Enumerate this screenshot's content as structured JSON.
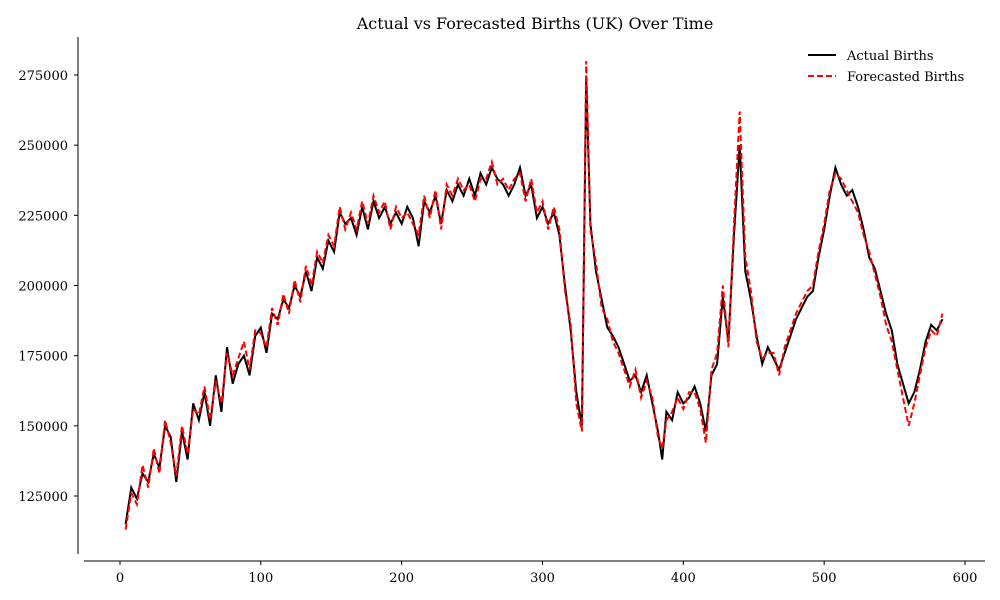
{
  "chart_data": {
    "type": "line",
    "title": "Actual vs Forecasted Births (UK) Over Time",
    "xlabel": "",
    "ylabel": "",
    "xlim": [
      -25,
      615
    ],
    "ylim": [
      105000,
      288000
    ],
    "xticks": [
      0,
      100,
      200,
      300,
      400,
      500,
      600
    ],
    "yticks": [
      125000,
      150000,
      175000,
      200000,
      225000,
      250000,
      275000
    ],
    "grid": false,
    "legend_position": "upper right",
    "series": [
      {
        "name": "Actual Births",
        "color": "#000000",
        "style": "solid",
        "x": [
          4,
          8,
          12,
          16,
          20,
          24,
          28,
          32,
          36,
          40,
          44,
          48,
          52,
          56,
          60,
          64,
          68,
          72,
          76,
          80,
          84,
          88,
          92,
          96,
          100,
          104,
          108,
          112,
          116,
          120,
          124,
          128,
          132,
          136,
          140,
          144,
          148,
          152,
          156,
          160,
          164,
          168,
          172,
          176,
          180,
          184,
          188,
          192,
          196,
          200,
          204,
          208,
          212,
          216,
          220,
          224,
          228,
          232,
          236,
          240,
          244,
          248,
          252,
          256,
          260,
          264,
          268,
          272,
          276,
          280,
          284,
          288,
          292,
          296,
          300,
          304,
          308,
          312,
          316,
          320,
          324,
          328,
          331,
          334,
          338,
          342,
          346,
          350,
          354,
          358,
          362,
          366,
          370,
          374,
          378,
          382,
          385,
          388,
          392,
          396,
          400,
          404,
          408,
          412,
          416,
          420,
          424,
          428,
          432,
          436,
          440,
          444,
          448,
          452,
          456,
          460,
          464,
          468,
          472,
          476,
          480,
          484,
          488,
          492,
          496,
          500,
          504,
          508,
          512,
          516,
          520,
          524,
          528,
          532,
          536,
          540,
          544,
          548,
          552,
          556,
          560,
          564,
          568,
          572,
          576,
          580,
          584
        ],
        "values": [
          115000,
          128000,
          124000,
          133000,
          130000,
          140000,
          135000,
          150000,
          146000,
          130000,
          148000,
          138000,
          158000,
          152000,
          162000,
          150000,
          168000,
          155000,
          178000,
          165000,
          172000,
          175000,
          168000,
          182000,
          185000,
          176000,
          190000,
          188000,
          195000,
          192000,
          200000,
          196000,
          205000,
          198000,
          210000,
          206000,
          216000,
          212000,
          226000,
          222000,
          224000,
          218000,
          228000,
          220000,
          230000,
          224000,
          228000,
          222000,
          226000,
          222000,
          228000,
          224000,
          214000,
          230000,
          226000,
          232000,
          222000,
          234000,
          230000,
          236000,
          232000,
          238000,
          232000,
          240000,
          236000,
          242000,
          238000,
          236000,
          232000,
          236000,
          242000,
          232000,
          236000,
          224000,
          228000,
          222000,
          226000,
          218000,
          200000,
          184000,
          162000,
          150000,
          274000,
          222000,
          205000,
          195000,
          185000,
          182000,
          178000,
          172000,
          166000,
          168000,
          162000,
          168000,
          158000,
          148000,
          138000,
          155000,
          152000,
          162000,
          158000,
          160000,
          164000,
          158000,
          148000,
          168000,
          172000,
          196000,
          180000,
          218000,
          250000,
          205000,
          195000,
          182000,
          172000,
          178000,
          174000,
          170000,
          176000,
          182000,
          188000,
          192000,
          196000,
          198000,
          210000,
          220000,
          232000,
          242000,
          236000,
          232000,
          234000,
          228000,
          220000,
          210000,
          206000,
          198000,
          190000,
          184000,
          172000,
          165000,
          158000,
          162000,
          170000,
          180000,
          186000,
          184000,
          188000
        ]
      },
      {
        "name": "Forecasted Births",
        "color": "#ff0000",
        "style": "dashed",
        "x": [
          4,
          8,
          12,
          16,
          20,
          24,
          28,
          32,
          36,
          40,
          44,
          48,
          52,
          56,
          60,
          64,
          68,
          72,
          76,
          80,
          84,
          88,
          92,
          96,
          100,
          104,
          108,
          112,
          116,
          120,
          124,
          128,
          132,
          136,
          140,
          144,
          148,
          152,
          156,
          160,
          164,
          168,
          172,
          176,
          180,
          184,
          188,
          192,
          196,
          200,
          204,
          208,
          212,
          216,
          220,
          224,
          228,
          232,
          236,
          240,
          244,
          248,
          252,
          256,
          260,
          264,
          268,
          272,
          276,
          280,
          284,
          288,
          292,
          296,
          300,
          304,
          308,
          312,
          316,
          320,
          324,
          328,
          331,
          334,
          338,
          342,
          346,
          350,
          354,
          358,
          362,
          366,
          370,
          374,
          378,
          382,
          385,
          388,
          392,
          396,
          400,
          404,
          408,
          412,
          416,
          420,
          424,
          428,
          432,
          436,
          440,
          444,
          448,
          452,
          456,
          460,
          464,
          468,
          472,
          476,
          480,
          484,
          488,
          492,
          496,
          500,
          504,
          508,
          512,
          516,
          520,
          524,
          528,
          532,
          536,
          540,
          544,
          548,
          552,
          556,
          560,
          564,
          568,
          572,
          576,
          580,
          584
        ],
        "values": [
          113000,
          126000,
          122000,
          136000,
          128000,
          142000,
          133000,
          152000,
          144000,
          132000,
          150000,
          140000,
          156000,
          154000,
          164000,
          152000,
          166000,
          158000,
          176000,
          168000,
          174000,
          180000,
          170000,
          184000,
          183000,
          178000,
          192000,
          186000,
          197000,
          190000,
          202000,
          194000,
          207000,
          200000,
          212000,
          208000,
          218000,
          214000,
          228000,
          220000,
          226000,
          220000,
          230000,
          222000,
          232000,
          226000,
          230000,
          220000,
          228000,
          224000,
          226000,
          222000,
          218000,
          232000,
          224000,
          234000,
          220000,
          236000,
          232000,
          238000,
          234000,
          236000,
          230000,
          238000,
          238000,
          244000,
          236000,
          238000,
          234000,
          238000,
          240000,
          230000,
          238000,
          226000,
          230000,
          220000,
          228000,
          220000,
          198000,
          186000,
          158000,
          148000,
          280000,
          220000,
          208000,
          192000,
          188000,
          180000,
          176000,
          170000,
          164000,
          170000,
          160000,
          166000,
          160000,
          146000,
          142000,
          152000,
          155000,
          160000,
          156000,
          162000,
          162000,
          156000,
          144000,
          170000,
          176000,
          200000,
          178000,
          222000,
          262000,
          210000,
          198000,
          180000,
          174000,
          176000,
          176000,
          168000,
          178000,
          184000,
          190000,
          194000,
          198000,
          200000,
          212000,
          222000,
          234000,
          240000,
          238000,
          234000,
          230000,
          226000,
          218000,
          212000,
          204000,
          196000,
          186000,
          180000,
          170000,
          160000,
          150000,
          158000,
          168000,
          178000,
          184000,
          182000,
          190000
        ]
      }
    ]
  }
}
